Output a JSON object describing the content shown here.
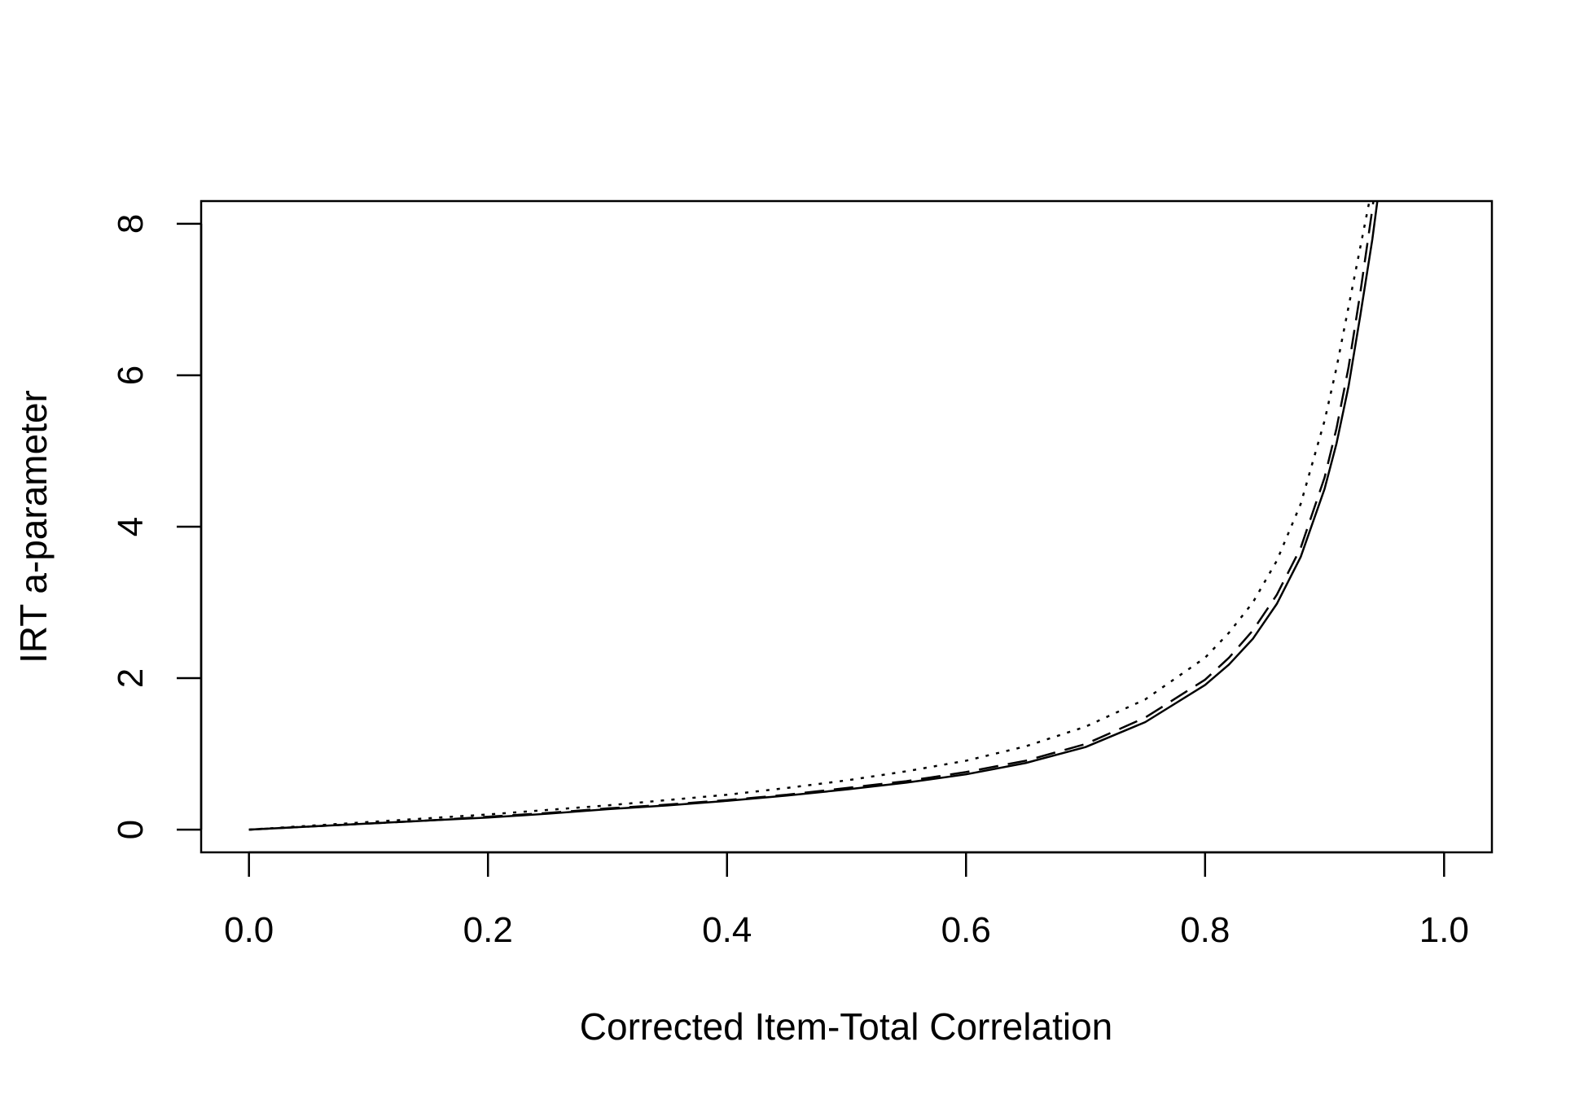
{
  "chart_data": {
    "type": "line",
    "title": "",
    "xlabel": "Corrected Item-Total Correlation",
    "ylabel": "IRT a-parameter",
    "xlim": [
      -0.04,
      1.04
    ],
    "ylim": [
      -0.3,
      8.3
    ],
    "xticks": [
      0.0,
      0.2,
      0.4,
      0.6,
      0.8,
      1.0
    ],
    "xtick_labels": [
      "0.0",
      "0.2",
      "0.4",
      "0.6",
      "0.8",
      "1.0"
    ],
    "yticks": [
      0,
      2,
      4,
      6,
      8
    ],
    "ytick_labels": [
      "0",
      "2",
      "4",
      "6",
      "8"
    ],
    "grid": false,
    "legend": "none",
    "series": [
      {
        "line_style": "solid",
        "color": "#000000",
        "x": [
          0.0,
          0.05,
          0.1,
          0.15,
          0.2,
          0.25,
          0.3,
          0.35,
          0.4,
          0.45,
          0.5,
          0.55,
          0.6,
          0.65,
          0.7,
          0.75,
          0.8,
          0.82,
          0.84,
          0.86,
          0.88,
          0.9,
          0.91,
          0.92,
          0.93,
          0.94,
          0.945,
          0.95
        ],
        "y": [
          0.0,
          0.04,
          0.08,
          0.12,
          0.16,
          0.21,
          0.27,
          0.32,
          0.38,
          0.45,
          0.53,
          0.62,
          0.73,
          0.88,
          1.09,
          1.42,
          1.91,
          2.18,
          2.52,
          2.98,
          3.6,
          4.5,
          5.1,
          5.85,
          6.8,
          7.8,
          8.4,
          9.0
        ]
      },
      {
        "line_style": "dashed",
        "color": "#000000",
        "x": [
          0.0,
          0.05,
          0.1,
          0.15,
          0.2,
          0.25,
          0.3,
          0.35,
          0.4,
          0.45,
          0.5,
          0.55,
          0.6,
          0.65,
          0.7,
          0.75,
          0.8,
          0.82,
          0.84,
          0.86,
          0.88,
          0.9,
          0.91,
          0.92,
          0.93,
          0.94,
          0.945,
          0.95
        ],
        "y": [
          0.0,
          0.04,
          0.08,
          0.12,
          0.17,
          0.22,
          0.28,
          0.33,
          0.39,
          0.46,
          0.55,
          0.64,
          0.76,
          0.91,
          1.13,
          1.48,
          1.98,
          2.27,
          2.63,
          3.1,
          3.72,
          4.65,
          5.3,
          6.1,
          7.1,
          8.2,
          8.8,
          9.4
        ]
      },
      {
        "line_style": "dotted",
        "color": "#000000",
        "x": [
          0.0,
          0.05,
          0.1,
          0.15,
          0.2,
          0.25,
          0.3,
          0.35,
          0.4,
          0.45,
          0.5,
          0.55,
          0.6,
          0.65,
          0.7,
          0.75,
          0.8,
          0.82,
          0.84,
          0.86,
          0.88,
          0.9,
          0.91,
          0.92,
          0.93,
          0.94
        ],
        "y": [
          0.0,
          0.05,
          0.1,
          0.15,
          0.2,
          0.26,
          0.32,
          0.39,
          0.46,
          0.55,
          0.65,
          0.77,
          0.91,
          1.1,
          1.36,
          1.72,
          2.27,
          2.6,
          3.0,
          3.55,
          4.3,
          5.4,
          6.1,
          6.9,
          7.7,
          8.5
        ]
      }
    ]
  }
}
